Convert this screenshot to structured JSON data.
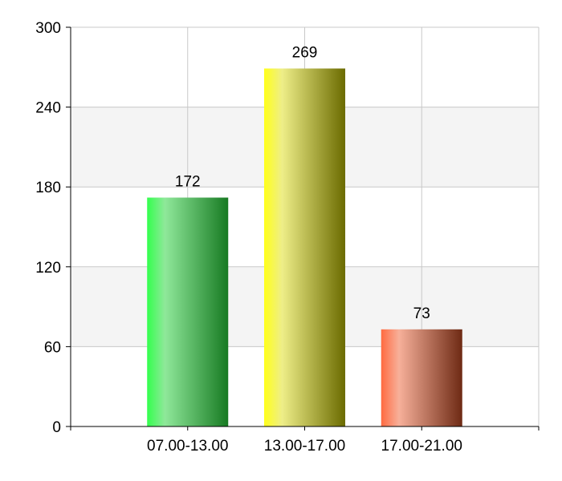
{
  "chart_data": {
    "type": "bar",
    "categories": [
      "07.00-13.00",
      "13.00-17.00",
      "17.00-21.00"
    ],
    "values": [
      172,
      269,
      73
    ],
    "data_labels": [
      "172",
      "269",
      "73"
    ],
    "yticks": [
      0,
      60,
      120,
      180,
      240,
      300
    ],
    "ytick_labels": [
      "0",
      "60",
      "120",
      "180",
      "240",
      "300"
    ],
    "ylim": [
      0,
      300
    ],
    "title": "",
    "xlabel": "",
    "ylabel": "",
    "grid": true,
    "legend": "none",
    "bar_colors": [
      {
        "start": "#33ff4d",
        "mid": "#8fe89a",
        "end": "#177a22"
      },
      {
        "start": "#ffff1a",
        "mid": "#eeee88",
        "end": "#6b6b00"
      },
      {
        "start": "#ff6a40",
        "mid": "#f7b09a",
        "end": "#6e2a14"
      }
    ],
    "band_color": "#f4f4f4",
    "grid_color": "#c8c8c8"
  }
}
